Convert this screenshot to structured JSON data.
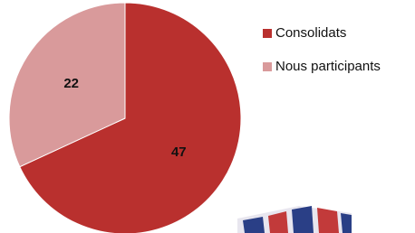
{
  "chart_data": {
    "type": "pie",
    "categories": [
      "Consolidats",
      "Nous participants"
    ],
    "values": [
      47,
      22
    ],
    "colors": [
      "#b9302e",
      "#d99a9b"
    ],
    "legend": "right"
  }
}
